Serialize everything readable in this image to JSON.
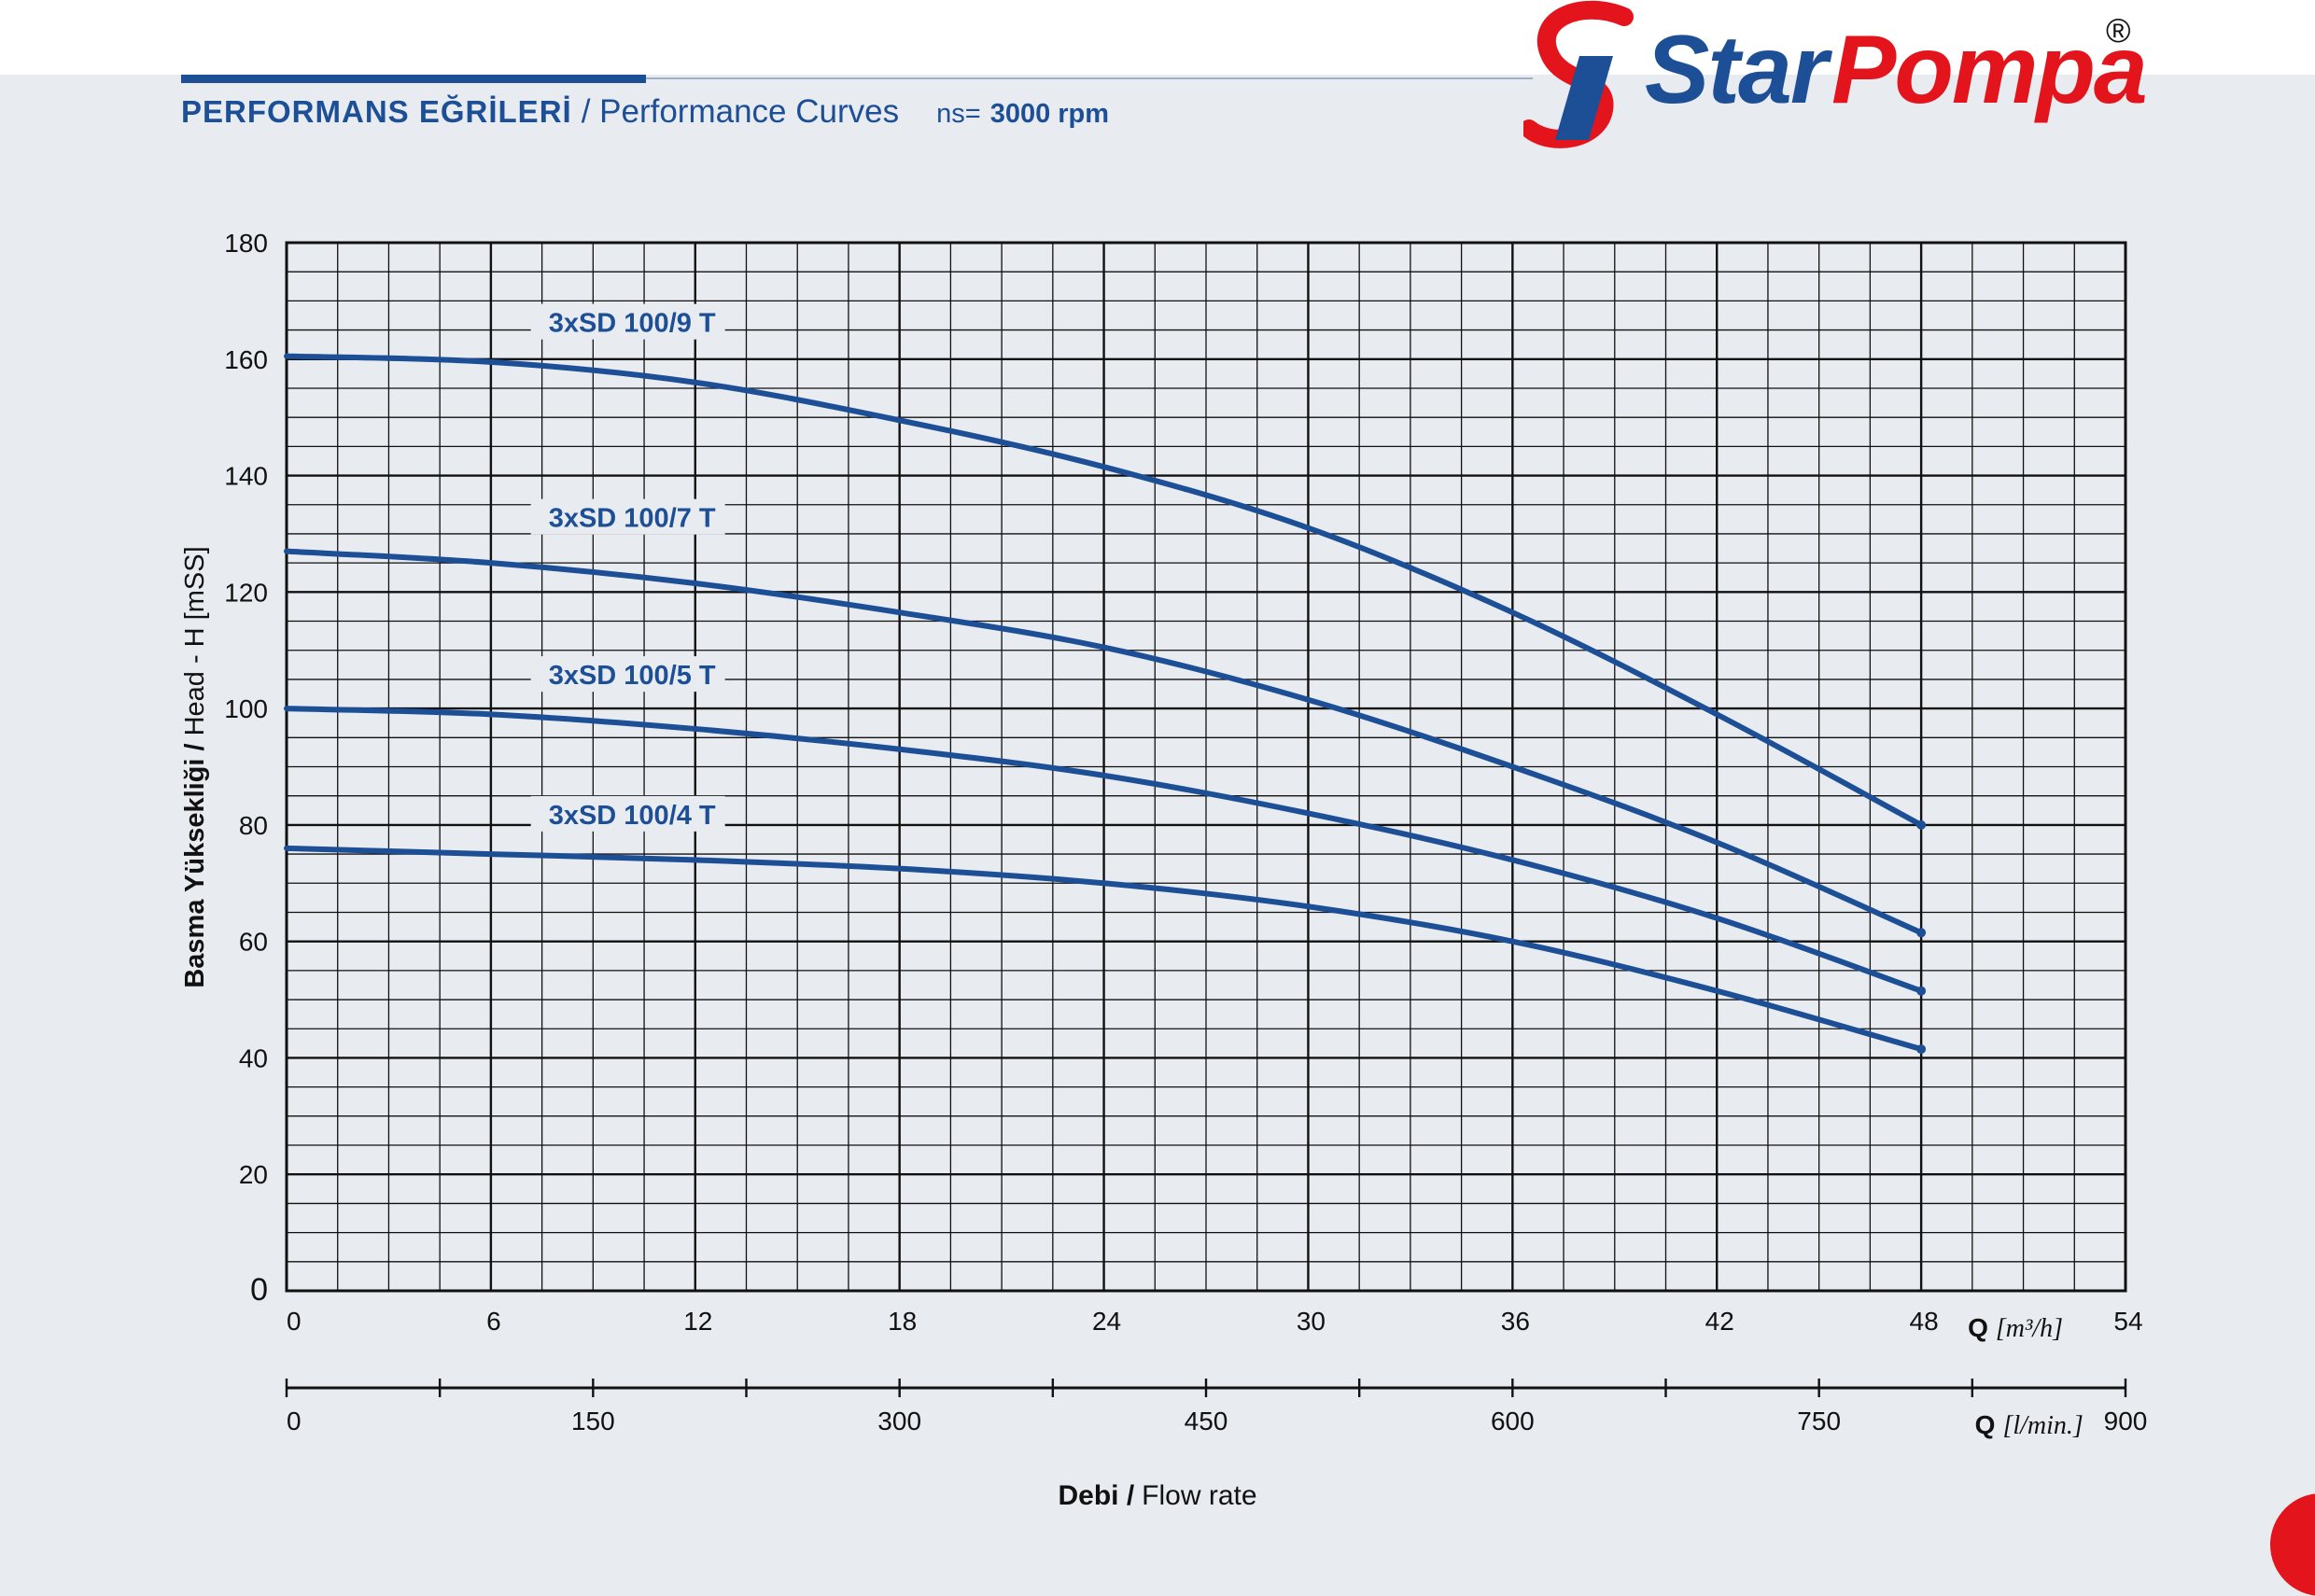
{
  "header": {
    "title_tr": "PERFORMANS EĞRİLERİ",
    "title_en": "/ Performance Curves",
    "speed_label": "ns=",
    "speed_value": "3000 rpm"
  },
  "logo": {
    "text_blue": "Star",
    "text_red": "Pompa",
    "registered": "®"
  },
  "colors": {
    "curve": "#1d4f96",
    "grid": "#111111",
    "brand_red": "#e3141b",
    "background": "#e8ebef"
  },
  "chart_data": {
    "type": "line",
    "title": "",
    "xlabel": "Q [m³/h]",
    "ylabel": "Basma Yüksekliği / Head - H [mSS]",
    "x_axis_label_parts": {
      "q": "Q",
      "unit": "[m³/h]"
    },
    "x2_axis_label_parts": {
      "q": "Q",
      "unit": "[l/min.]"
    },
    "xlim": [
      0,
      54
    ],
    "ylim": [
      0,
      180
    ],
    "x_ticks": [
      0,
      6,
      12,
      18,
      24,
      30,
      36,
      42,
      48,
      54
    ],
    "y_ticks": [
      0,
      20,
      40,
      60,
      80,
      100,
      120,
      140,
      160,
      180
    ],
    "x2_ticks": [
      0,
      150,
      300,
      450,
      600,
      750,
      900
    ],
    "x2lim": [
      0,
      900
    ],
    "bottom_label_bold": "Debi /",
    "bottom_label": "Flow rate",
    "grid": true,
    "x": [
      0,
      6,
      12,
      18,
      24,
      30,
      36,
      42,
      48
    ],
    "series": [
      {
        "name": "3xSD 100/9 T",
        "values": [
          160.5,
          159.5,
          156,
          149.5,
          141.5,
          131,
          116.5,
          99,
          80
        ]
      },
      {
        "name": "3xSD 100/7 T",
        "values": [
          127,
          125,
          121.5,
          116.5,
          110.5,
          101.5,
          90,
          77,
          61.5
        ]
      },
      {
        "name": "3xSD 100/5 T",
        "values": [
          100,
          99,
          96.5,
          93,
          88.5,
          82,
          74,
          64,
          51.5
        ]
      },
      {
        "name": "3xSD 100/4 T",
        "values": [
          76,
          75,
          74,
          72.5,
          70,
          66,
          60,
          51.5,
          41.5
        ]
      }
    ]
  }
}
